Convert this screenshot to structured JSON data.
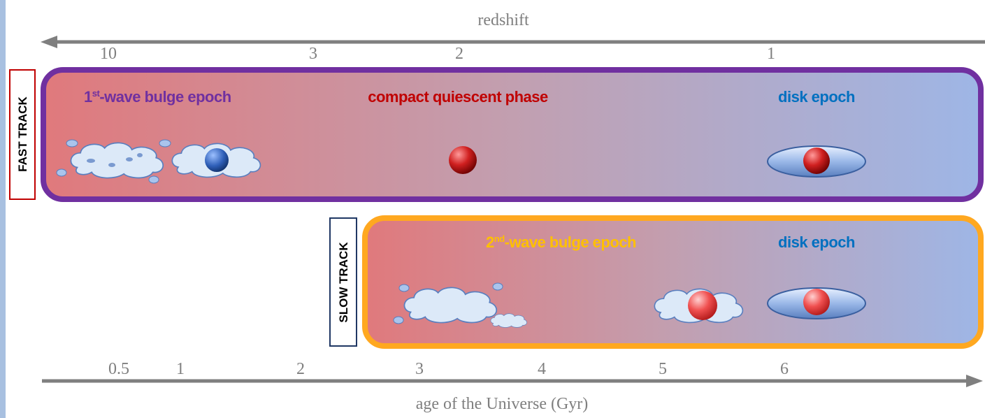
{
  "top_axis": {
    "label": "redshift",
    "ticks": [
      10,
      3,
      2,
      1
    ]
  },
  "fast_track": {
    "label": "FAST TRACK",
    "phases": [
      {
        "label": "1",
        "sup": "st",
        "rest": "-wave bulge epoch"
      },
      {
        "label": "compact quiescent phase"
      },
      {
        "label": "disk epoch"
      }
    ]
  },
  "slow_track": {
    "label": "SLOW TRACK",
    "phases": [
      {
        "label": "2",
        "sup": "nd",
        "rest": "-wave bulge epoch"
      },
      {
        "label": "disk epoch"
      }
    ]
  },
  "bottom_axis": {
    "label": "age of the Universe (Gyr)",
    "ticks": [
      0.5,
      1,
      2,
      3,
      4,
      5,
      6
    ]
  }
}
